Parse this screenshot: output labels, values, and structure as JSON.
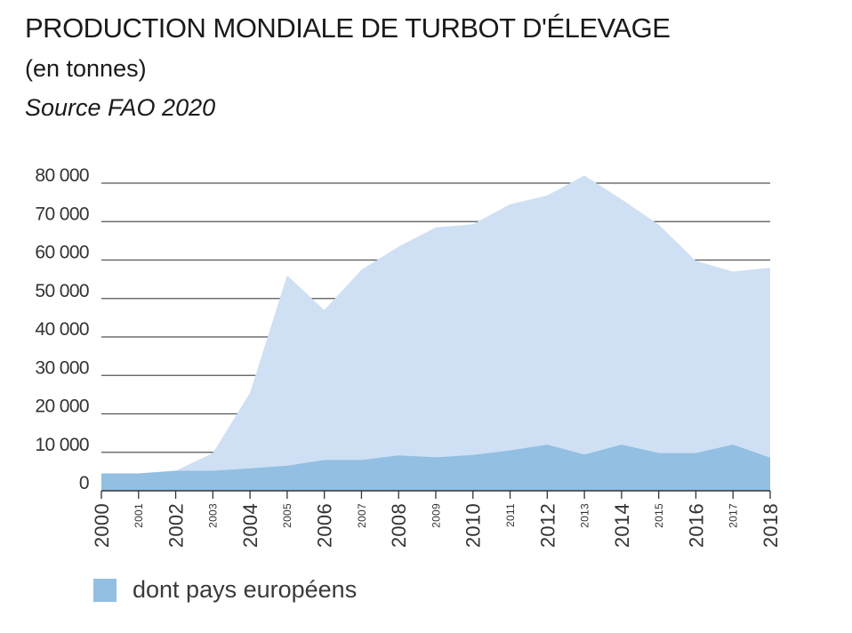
{
  "header": {
    "title": "PRODUCTION MONDIALE DE TURBOT D'ÉLEVAGE",
    "subtitle": "(en tonnes)",
    "source": "Source FAO 2020"
  },
  "legend": {
    "label": "dont pays européens"
  },
  "colors": {
    "total_area": "#cfe0f4",
    "europe_area": "#92bfe2",
    "gridline": "#555555",
    "tick_text": "#333333"
  },
  "chart_data": {
    "type": "area",
    "title": "PRODUCTION MONDIALE DE TURBOT D'ÉLEVAGE",
    "subtitle": "(en tonnes)",
    "ylim": [
      0,
      80000
    ],
    "grid": true,
    "y_ticks": [
      0,
      10000,
      20000,
      30000,
      40000,
      50000,
      60000,
      70000,
      80000
    ],
    "y_tick_labels": [
      "0",
      "10 000",
      "20 000",
      "30 000",
      "40 000",
      "50 000",
      "60 000",
      "70 000",
      "80 000"
    ],
    "x": [
      2000,
      2001,
      2002,
      2003,
      2004,
      2005,
      2006,
      2007,
      2008,
      2009,
      2010,
      2011,
      2012,
      2013,
      2014,
      2015,
      2016,
      2017,
      2018
    ],
    "x_tick_labels": [
      "2000",
      "2001",
      "2002",
      "2003",
      "2004",
      "2005",
      "2006",
      "2007",
      "2008",
      "2009",
      "2010",
      "2011",
      "2012",
      "2013",
      "2014",
      "2015",
      "2016",
      "2017",
      "2018"
    ],
    "series": [
      {
        "values": [
          4500,
          4500,
          5200,
          9800,
          25500,
          56000,
          47000,
          57500,
          63500,
          68500,
          69300,
          74500,
          76800,
          82000,
          75800,
          69200,
          59800,
          57000,
          58000
        ]
      },
      {
        "name": "dont pays européens",
        "values": [
          4500,
          4500,
          5200,
          5200,
          5800,
          6500,
          8000,
          8000,
          9200,
          8700,
          9300,
          10500,
          12000,
          9400,
          12000,
          9800,
          9800,
          12000,
          8600
        ]
      }
    ],
    "legend_position": "bottom-left"
  }
}
